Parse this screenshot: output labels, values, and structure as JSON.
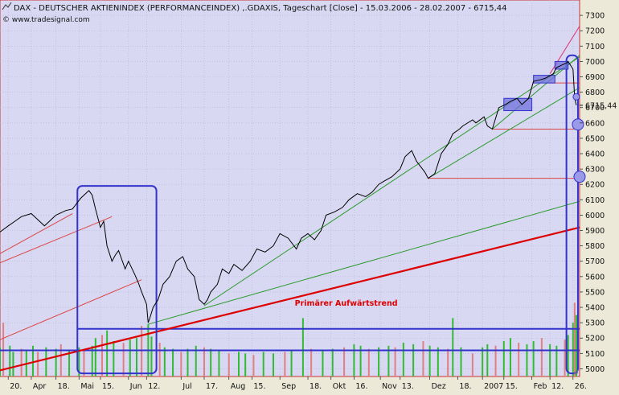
{
  "header": {
    "title": "DAX  - DEUTSCHER AKTIENINDEX (PERFORMANCEINDEX) ,.GDAXIS, Tageschart [Close] - 15.03.2006 - 28.02.2007 - 6715,44",
    "source": "© www.tradesignal.com"
  },
  "colors": {
    "plot_bg": "#d8d8f2",
    "frame_bg": "#ece9d8",
    "price_line": "#000000",
    "primary_trend": "#dd0000",
    "thin_trend": "#dd4444",
    "green_trend": "#2a9a2a",
    "annotation": "#3333cc",
    "box_fill": "#7070dd",
    "pink_line": "#e03070",
    "volume_green": "#33bb33",
    "volume_pink": "#e08080"
  },
  "chart_data": {
    "type": "line",
    "title": "DAX  - DEUTSCHER AKTIENINDEX (PERFORMANCEINDEX) ,.GDAXIS, Tageschart [Close] - 15.03.2006 - 28.02.2007 - 6715,44",
    "xlabel": "",
    "ylabel": "",
    "grid": true,
    "ylim": [
      4950,
      7400
    ],
    "xlim": [
      "2006-03-15",
      "2007-03-02"
    ],
    "y_ticks": [
      5000,
      5100,
      5200,
      5300,
      5400,
      5500,
      5600,
      5700,
      5800,
      5900,
      6000,
      6100,
      6200,
      6300,
      6400,
      6500,
      6600,
      6700,
      6800,
      6900,
      7000,
      7100,
      7200,
      7300
    ],
    "last_value_label": "6715,44",
    "x_ticks": [
      {
        "date": "2006-03-20",
        "label": "20."
      },
      {
        "date": "2006-04-03",
        "label": "Apr"
      },
      {
        "date": "2006-04-18",
        "label": "18."
      },
      {
        "date": "2006-05-02",
        "label": "Mai"
      },
      {
        "date": "2006-05-15",
        "label": "15."
      },
      {
        "date": "2006-06-01",
        "label": "Jun"
      },
      {
        "date": "2006-06-12",
        "label": "12."
      },
      {
        "date": "2006-07-03",
        "label": "Jul"
      },
      {
        "date": "2006-07-17",
        "label": "17."
      },
      {
        "date": "2006-08-01",
        "label": "Aug"
      },
      {
        "date": "2006-08-15",
        "label": "15."
      },
      {
        "date": "2006-09-01",
        "label": "Sep"
      },
      {
        "date": "2006-09-18",
        "label": "18."
      },
      {
        "date": "2006-10-02",
        "label": "Okt"
      },
      {
        "date": "2006-10-16",
        "label": "16."
      },
      {
        "date": "2006-11-01",
        "label": "Nov"
      },
      {
        "date": "2006-11-13",
        "label": "13."
      },
      {
        "date": "2006-12-01",
        "label": "Dez"
      },
      {
        "date": "2006-12-18",
        "label": "18."
      },
      {
        "date": "2007-01-02",
        "label": "2007"
      },
      {
        "date": "2007-01-15",
        "label": "15."
      },
      {
        "date": "2007-02-01",
        "label": "Feb"
      },
      {
        "date": "2007-02-12",
        "label": "12."
      },
      {
        "date": "2007-02-26",
        "label": "26."
      }
    ],
    "series": [
      {
        "kind": "price",
        "points": [
          [
            "2006-03-15",
            5890
          ],
          [
            "2006-03-20",
            5930
          ],
          [
            "2006-03-24",
            5960
          ],
          [
            "2006-03-28",
            5990
          ],
          [
            "2006-04-03",
            6010
          ],
          [
            "2006-04-06",
            5980
          ],
          [
            "2006-04-11",
            5930
          ],
          [
            "2006-04-18",
            6000
          ],
          [
            "2006-04-24",
            6030
          ],
          [
            "2006-04-28",
            6040
          ],
          [
            "2006-05-03",
            6110
          ],
          [
            "2006-05-08",
            6160
          ],
          [
            "2006-05-10",
            6130
          ],
          [
            "2006-05-12",
            6040
          ],
          [
            "2006-05-15",
            5920
          ],
          [
            "2006-05-17",
            5960
          ],
          [
            "2006-05-19",
            5800
          ],
          [
            "2006-05-22",
            5700
          ],
          [
            "2006-05-24",
            5740
          ],
          [
            "2006-05-26",
            5770
          ],
          [
            "2006-05-30",
            5650
          ],
          [
            "2006-06-01",
            5700
          ],
          [
            "2006-06-05",
            5610
          ],
          [
            "2006-06-07",
            5560
          ],
          [
            "2006-06-09",
            5500
          ],
          [
            "2006-06-12",
            5420
          ],
          [
            "2006-06-13",
            5300
          ],
          [
            "2006-06-14",
            5330
          ],
          [
            "2006-06-16",
            5400
          ],
          [
            "2006-06-19",
            5450
          ],
          [
            "2006-06-22",
            5550
          ],
          [
            "2006-06-26",
            5600
          ],
          [
            "2006-06-30",
            5700
          ],
          [
            "2006-07-04",
            5730
          ],
          [
            "2006-07-07",
            5650
          ],
          [
            "2006-07-11",
            5600
          ],
          [
            "2006-07-14",
            5450
          ],
          [
            "2006-07-17",
            5420
          ],
          [
            "2006-07-19",
            5450
          ],
          [
            "2006-07-21",
            5500
          ],
          [
            "2006-07-25",
            5550
          ],
          [
            "2006-07-28",
            5650
          ],
          [
            "2006-08-01",
            5620
          ],
          [
            "2006-08-04",
            5680
          ],
          [
            "2006-08-09",
            5640
          ],
          [
            "2006-08-14",
            5700
          ],
          [
            "2006-08-18",
            5780
          ],
          [
            "2006-08-23",
            5760
          ],
          [
            "2006-08-28",
            5800
          ],
          [
            "2006-09-01",
            5880
          ],
          [
            "2006-09-06",
            5850
          ],
          [
            "2006-09-11",
            5780
          ],
          [
            "2006-09-14",
            5850
          ],
          [
            "2006-09-18",
            5880
          ],
          [
            "2006-09-22",
            5840
          ],
          [
            "2006-09-26",
            5900
          ],
          [
            "2006-09-29",
            6000
          ],
          [
            "2006-10-04",
            6020
          ],
          [
            "2006-10-09",
            6050
          ],
          [
            "2006-10-13",
            6100
          ],
          [
            "2006-10-18",
            6140
          ],
          [
            "2006-10-23",
            6120
          ],
          [
            "2006-10-27",
            6150
          ],
          [
            "2006-10-31",
            6200
          ],
          [
            "2006-11-03",
            6220
          ],
          [
            "2006-11-08",
            6250
          ],
          [
            "2006-11-13",
            6300
          ],
          [
            "2006-11-16",
            6380
          ],
          [
            "2006-11-20",
            6420
          ],
          [
            "2006-11-23",
            6350
          ],
          [
            "2006-11-28",
            6280
          ],
          [
            "2006-11-30",
            6240
          ],
          [
            "2006-12-04",
            6270
          ],
          [
            "2006-12-08",
            6400
          ],
          [
            "2006-12-12",
            6460
          ],
          [
            "2006-12-15",
            6530
          ],
          [
            "2006-12-19",
            6560
          ],
          [
            "2006-12-21",
            6580
          ],
          [
            "2006-12-27",
            6620
          ],
          [
            "2006-12-29",
            6600
          ],
          [
            "2007-01-03",
            6640
          ],
          [
            "2007-01-05",
            6580
          ],
          [
            "2007-01-08",
            6560
          ],
          [
            "2007-01-12",
            6700
          ],
          [
            "2007-01-16",
            6720
          ],
          [
            "2007-01-19",
            6740
          ],
          [
            "2007-01-23",
            6760
          ],
          [
            "2007-01-26",
            6720
          ],
          [
            "2007-01-30",
            6760
          ],
          [
            "2007-02-02",
            6870
          ],
          [
            "2007-02-06",
            6880
          ],
          [
            "2007-02-09",
            6890
          ],
          [
            "2007-02-14",
            6920
          ],
          [
            "2007-02-16",
            6960
          ],
          [
            "2007-02-20",
            6980
          ],
          [
            "2007-02-22",
            6990
          ],
          [
            "2007-02-23",
            7000
          ],
          [
            "2007-02-26",
            6950
          ],
          [
            "2007-02-27",
            6760
          ],
          [
            "2007-02-28",
            6715
          ]
        ]
      },
      {
        "kind": "volume",
        "base": 4950,
        "points": [
          [
            "2006-03-15",
            5140
          ],
          [
            "2006-03-17",
            5300
          ],
          [
            "2006-03-21",
            5150
          ],
          [
            "2006-03-23",
            5110
          ],
          [
            "2006-03-28",
            5130
          ],
          [
            "2006-03-31",
            5120
          ],
          [
            "2006-04-04",
            5150
          ],
          [
            "2006-04-07",
            5110
          ],
          [
            "2006-04-12",
            5140
          ],
          [
            "2006-04-18",
            5130
          ],
          [
            "2006-04-21",
            5160
          ],
          [
            "2006-04-26",
            5120
          ],
          [
            "2006-05-02",
            5140
          ],
          [
            "2006-05-05",
            5130
          ],
          [
            "2006-05-10",
            5150
          ],
          [
            "2006-05-12",
            5200
          ],
          [
            "2006-05-16",
            5220
          ],
          [
            "2006-05-19",
            5250
          ],
          [
            "2006-05-23",
            5180
          ],
          [
            "2006-05-29",
            5170
          ],
          [
            "2006-06-02",
            5190
          ],
          [
            "2006-06-06",
            5200
          ],
          [
            "2006-06-09",
            5280
          ],
          [
            "2006-06-13",
            5290
          ],
          [
            "2006-06-15",
            5210
          ],
          [
            "2006-06-20",
            5170
          ],
          [
            "2006-06-23",
            5140
          ],
          [
            "2006-06-28",
            5130
          ],
          [
            "2006-07-03",
            5110
          ],
          [
            "2006-07-07",
            5130
          ],
          [
            "2006-07-12",
            5150
          ],
          [
            "2006-07-17",
            5140
          ],
          [
            "2006-07-21",
            5130
          ],
          [
            "2006-07-26",
            5120
          ],
          [
            "2006-08-01",
            5100
          ],
          [
            "2006-08-07",
            5110
          ],
          [
            "2006-08-11",
            5100
          ],
          [
            "2006-08-16",
            5090
          ],
          [
            "2006-08-22",
            5110
          ],
          [
            "2006-08-28",
            5100
          ],
          [
            "2006-09-04",
            5110
          ],
          [
            "2006-09-08",
            5120
          ],
          [
            "2006-09-15",
            5330
          ],
          [
            "2006-09-20",
            5130
          ],
          [
            "2006-09-27",
            5120
          ],
          [
            "2006-10-03",
            5130
          ],
          [
            "2006-10-10",
            5140
          ],
          [
            "2006-10-16",
            5160
          ],
          [
            "2006-10-20",
            5150
          ],
          [
            "2006-10-25",
            5130
          ],
          [
            "2006-10-31",
            5140
          ],
          [
            "2006-11-06",
            5150
          ],
          [
            "2006-11-10",
            5140
          ],
          [
            "2006-11-15",
            5170
          ],
          [
            "2006-11-21",
            5160
          ],
          [
            "2006-11-27",
            5180
          ],
          [
            "2006-12-01",
            5150
          ],
          [
            "2006-12-06",
            5140
          ],
          [
            "2006-12-12",
            5130
          ],
          [
            "2006-12-15",
            5330
          ],
          [
            "2006-12-20",
            5140
          ],
          [
            "2006-12-27",
            5100
          ],
          [
            "2007-01-02",
            5140
          ],
          [
            "2007-01-05",
            5160
          ],
          [
            "2007-01-10",
            5150
          ],
          [
            "2007-01-15",
            5180
          ],
          [
            "2007-01-19",
            5200
          ],
          [
            "2007-01-24",
            5170
          ],
          [
            "2007-01-29",
            5160
          ],
          [
            "2007-02-02",
            5180
          ],
          [
            "2007-02-07",
            5200
          ],
          [
            "2007-02-12",
            5160
          ],
          [
            "2007-02-16",
            5150
          ],
          [
            "2007-02-21",
            5190
          ],
          [
            "2007-02-23",
            5220
          ],
          [
            "2007-02-26",
            5300
          ],
          [
            "2007-02-27",
            5430
          ],
          [
            "2007-02-28",
            5350
          ]
        ]
      }
    ],
    "trend_lines": [
      {
        "name": "primary",
        "label": "Primärer Aufwärtstrend",
        "from": [
          "2006-03-15",
          4990
        ],
        "to": [
          "2007-03-02",
          5920
        ],
        "color": "#dd0000",
        "width": 2.2
      },
      {
        "name": "green-long",
        "from": [
          "2006-06-13",
          5290
        ],
        "to": [
          "2007-03-02",
          6090
        ],
        "color": "#2a9a2a",
        "width": 1
      },
      {
        "name": "green-mid",
        "from": [
          "2006-07-17",
          5410
        ],
        "to": [
          "2007-03-02",
          7030
        ],
        "color": "#2a9a2a",
        "width": 1
      },
      {
        "name": "green-short",
        "from": [
          "2006-11-30",
          6240
        ],
        "to": [
          "2007-03-02",
          6830
        ],
        "color": "#2a9a2a",
        "width": 1
      },
      {
        "name": "green-jan",
        "from": [
          "2007-01-08",
          6560
        ],
        "to": [
          "2007-03-02",
          7040
        ],
        "color": "#2a9a2a",
        "width": 1
      },
      {
        "name": "red-upper-1",
        "from": [
          "2006-03-15",
          5750
        ],
        "to": [
          "2006-04-28",
          6010
        ],
        "color": "#dd4444",
        "width": 1
      },
      {
        "name": "red-upper-2",
        "from": [
          "2006-03-15",
          5690
        ],
        "to": [
          "2006-05-22",
          5990
        ],
        "color": "#dd4444",
        "width": 1
      },
      {
        "name": "red-lower",
        "from": [
          "2006-03-15",
          5190
        ],
        "to": [
          "2006-06-09",
          5580
        ],
        "color": "#dd4444",
        "width": 1
      },
      {
        "name": "pink-top",
        "from": [
          "2007-02-12",
          6920
        ],
        "to": [
          "2007-03-02",
          7230
        ],
        "color": "#e03070",
        "width": 1
      }
    ],
    "horizontal_lines": [
      {
        "name": "support-6240",
        "y": 6240,
        "from": "2006-11-30",
        "to": "2007-03-02",
        "color": "#dd4444"
      },
      {
        "name": "support-6560",
        "y": 6560,
        "from": "2007-01-08",
        "to": "2007-03-02",
        "color": "#dd4444"
      },
      {
        "name": "support-6860",
        "y": 6860,
        "from": "2007-02-12",
        "to": "2007-03-02",
        "color": "#dd4444"
      },
      {
        "name": "channel-5260",
        "y": 5260,
        "from": "2006-05-01",
        "to": "2007-03-02",
        "color": "#3333cc"
      },
      {
        "name": "channel-5120",
        "y": 5120,
        "from": "2006-03-15",
        "to": "2007-03-02",
        "color": "#3333cc"
      }
    ],
    "boxes": [
      {
        "name": "may-june-correction",
        "x0": "2006-05-01",
        "x1": "2006-06-18",
        "y0": 4970,
        "y1": 6190,
        "rounded": true
      },
      {
        "name": "feb-end-selloff",
        "x0": "2007-02-22",
        "x1": "2007-03-01",
        "y0": 4970,
        "y1": 7040,
        "rounded": true
      }
    ],
    "consolidation_boxes": [
      {
        "name": "jan-consolidation",
        "x0": "2007-01-15",
        "x1": "2007-02-01",
        "y0": 6680,
        "y1": 6760
      },
      {
        "name": "feb-consolidation-1",
        "x0": "2007-02-02",
        "x1": "2007-02-15",
        "y0": 6860,
        "y1": 6910
      },
      {
        "name": "feb-consolidation-2",
        "x0": "2007-02-15",
        "x1": "2007-02-23",
        "y0": 6950,
        "y1": 7000
      }
    ],
    "markers": [
      {
        "name": "marker-6770",
        "date": "2007-02-28",
        "y": 6770,
        "radius": 4
      },
      {
        "name": "marker-6590",
        "date": "2007-03-01",
        "y": 6590,
        "radius": 7
      },
      {
        "name": "marker-6250",
        "date": "2007-03-02",
        "y": 6250,
        "radius": 7
      }
    ],
    "annotations": [
      {
        "text": "Primärer Aufwärtstrend",
        "date": "2006-09-10",
        "y": 5410,
        "color": "#dd0000"
      }
    ]
  }
}
